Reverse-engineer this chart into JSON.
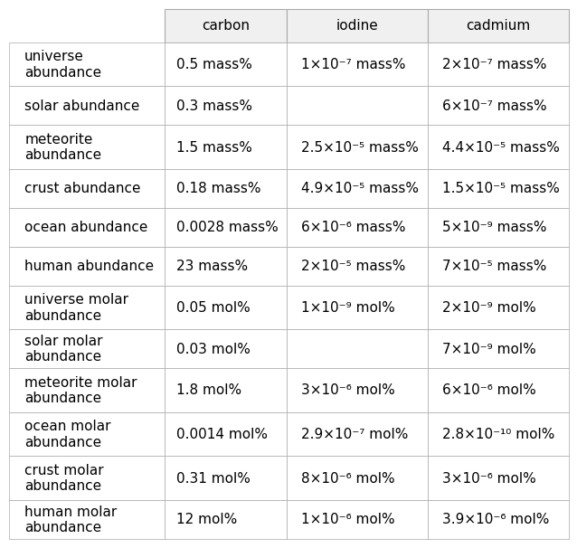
{
  "col_headers": [
    "carbon",
    "iodine",
    "cadmium"
  ],
  "row_headers": [
    "universe\nabundance",
    "solar abundance",
    "meteorite\nabundance",
    "crust abundance",
    "ocean abundance",
    "human abundance",
    "universe molar\nabundance",
    "solar molar\nabundance",
    "meteorite molar\nabundance",
    "ocean molar\nabundance",
    "crust molar\nabundance",
    "human molar\nabundance"
  ],
  "cells": [
    [
      "0.5 mass%",
      "1×10⁻⁷ mass%",
      "2×10⁻⁷ mass%"
    ],
    [
      "0.3 mass%",
      "",
      "6×10⁻⁷ mass%"
    ],
    [
      "1.5 mass%",
      "2.5×10⁻⁵ mass%",
      "4.4×10⁻⁵ mass%"
    ],
    [
      "0.18 mass%",
      "4.9×10⁻⁵ mass%",
      "1.5×10⁻⁵ mass%"
    ],
    [
      "0.0028 mass%",
      "6×10⁻⁶ mass%",
      "5×10⁻⁹ mass%"
    ],
    [
      "23 mass%",
      "2×10⁻⁵ mass%",
      "7×10⁻⁵ mass%"
    ],
    [
      "0.05 mol%",
      "1×10⁻⁹ mol%",
      "2×10⁻⁹ mol%"
    ],
    [
      "0.03 mol%",
      "",
      "7×10⁻⁹ mol%"
    ],
    [
      "1.8 mol%",
      "3×10⁻⁶ mol%",
      "6×10⁻⁶ mol%"
    ],
    [
      "0.0014 mol%",
      "2.9×10⁻⁷ mol%",
      "2.8×10⁻¹⁰ mol%"
    ],
    [
      "0.31 mol%",
      "8×10⁻⁶ mol%",
      "3×10⁻⁶ mol%"
    ],
    [
      "12 mol%",
      "1×10⁻⁶ mol%",
      "3.9×10⁻⁶ mol%"
    ]
  ],
  "header_bg": "#ffffff",
  "cell_bg": "#ffffff",
  "border_color": "#aaaaaa",
  "text_color": "#000000",
  "font_size": 11
}
